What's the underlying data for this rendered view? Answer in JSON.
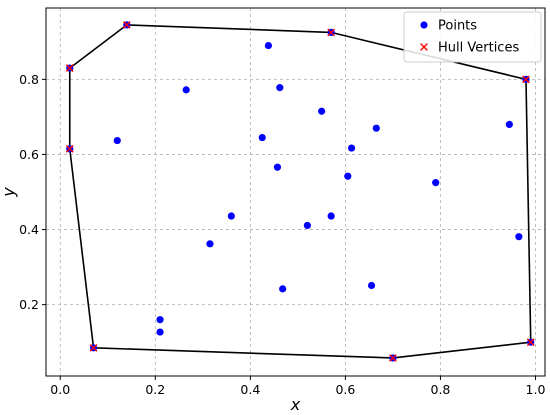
{
  "chart_data": {
    "type": "scatter",
    "xlabel": "x",
    "ylabel": "y",
    "xlim": [
      -0.03,
      1.02
    ],
    "ylim": [
      0.01,
      0.99
    ],
    "xticks": [
      0.0,
      0.2,
      0.4,
      0.6,
      0.8,
      1.0
    ],
    "xtick_labels": [
      "0.0",
      "0.2",
      "0.4",
      "0.6",
      "0.8",
      "1.0"
    ],
    "yticks": [
      0.2,
      0.4,
      0.6,
      0.8
    ],
    "ytick_labels": [
      "0.2",
      "0.4",
      "0.6",
      "0.8"
    ],
    "grid": true,
    "legend_position": "top-right",
    "colors": {
      "points": "#0000ff",
      "hull_vertex": "#ff0000",
      "hull_line": "#000000"
    },
    "series": [
      {
        "name": "Points",
        "marker": "circle",
        "points": [
          [
            0.02,
            0.83
          ],
          [
            0.14,
            0.945
          ],
          [
            0.57,
            0.925
          ],
          [
            0.98,
            0.8
          ],
          [
            0.99,
            0.1
          ],
          [
            0.7,
            0.058
          ],
          [
            0.07,
            0.085
          ],
          [
            0.02,
            0.615
          ],
          [
            0.438,
            0.89
          ],
          [
            0.265,
            0.772
          ],
          [
            0.462,
            0.778
          ],
          [
            0.55,
            0.715
          ],
          [
            0.425,
            0.645
          ],
          [
            0.12,
            0.637
          ],
          [
            0.665,
            0.67
          ],
          [
            0.613,
            0.617
          ],
          [
            0.457,
            0.566
          ],
          [
            0.605,
            0.542
          ],
          [
            0.945,
            0.68
          ],
          [
            0.79,
            0.525
          ],
          [
            0.36,
            0.436
          ],
          [
            0.57,
            0.436
          ],
          [
            0.52,
            0.411
          ],
          [
            0.315,
            0.362
          ],
          [
            0.965,
            0.381
          ],
          [
            0.468,
            0.242
          ],
          [
            0.655,
            0.251
          ],
          [
            0.21,
            0.16
          ],
          [
            0.21,
            0.127
          ]
        ]
      },
      {
        "name": "Hull Vertices",
        "marker": "x",
        "points": [
          [
            0.02,
            0.83
          ],
          [
            0.14,
            0.945
          ],
          [
            0.57,
            0.925
          ],
          [
            0.98,
            0.8
          ],
          [
            0.99,
            0.1
          ],
          [
            0.7,
            0.058
          ],
          [
            0.07,
            0.085
          ],
          [
            0.02,
            0.615
          ]
        ]
      }
    ]
  }
}
